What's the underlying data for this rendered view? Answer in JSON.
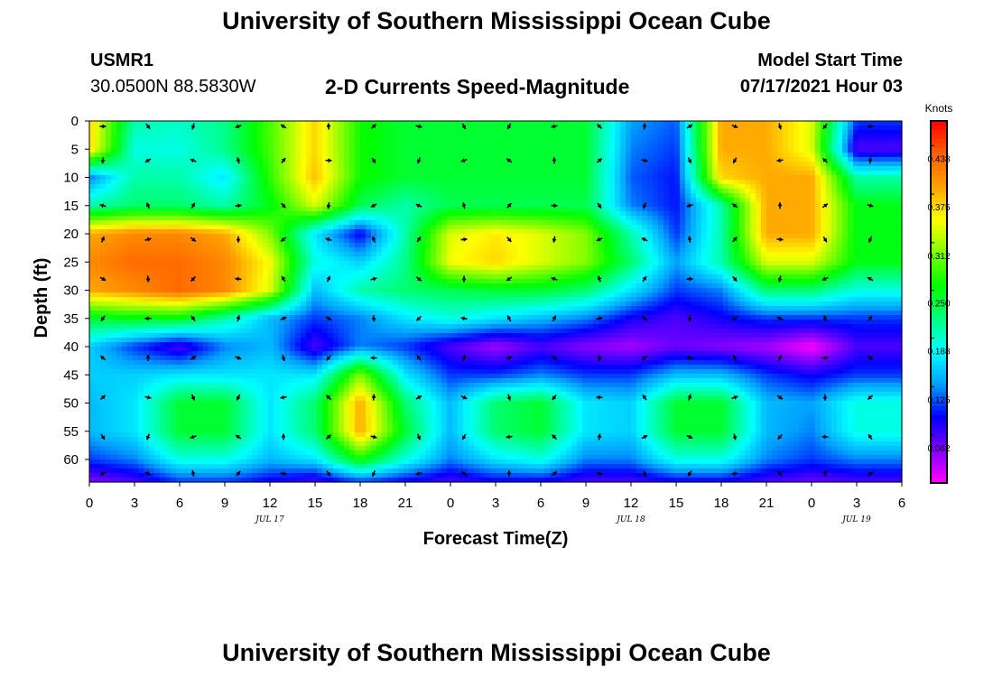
{
  "header": {
    "title": "University of Southern Mississippi Ocean Cube",
    "station_id": "USMR1",
    "station_coords": "30.0500N  88.5830W",
    "plot_title": "2-D Currents Speed-Magnitude",
    "model_start_label": "Model Start Time",
    "model_start_value": "07/17/2021 Hour 03"
  },
  "footer": {
    "title": "University of Southern Mississippi Ocean Cube"
  },
  "chart_data": {
    "type": "heatmap",
    "title": "2-D Currents Speed-Magnitude",
    "xlabel": "Forecast Time(Z)",
    "ylabel": "Depth (ft)",
    "x_tick_labels": [
      "0",
      "3",
      "6",
      "9",
      "12",
      "15",
      "18",
      "21",
      "0",
      "3",
      "6",
      "9",
      "12",
      "15",
      "18",
      "21",
      "0",
      "3",
      "6"
    ],
    "x_date_labels": [
      {
        "label": "JUL 17",
        "tick_index": 4
      },
      {
        "label": "JUL 18",
        "tick_index": 12
      },
      {
        "label": "JUL 19",
        "tick_index": 17
      }
    ],
    "y_tick_labels": [
      "0",
      "5",
      "10",
      "15",
      "20",
      "25",
      "30",
      "35",
      "40",
      "45",
      "50",
      "55",
      "60"
    ],
    "ylim": [
      0,
      64
    ],
    "y_inverted": true,
    "colorbar": {
      "unit": "Knots",
      "tick_labels": [
        "0.438",
        "0.375",
        "0.312",
        "0.250",
        "0.188",
        "0.125",
        "0.062"
      ],
      "tick_values": [
        0.438,
        0.375,
        0.312,
        0.25,
        0.188,
        0.125,
        0.062
      ],
      "range": [
        0,
        0.47
      ],
      "colors": [
        "#ff00ff",
        "#8000ff",
        "#0000ff",
        "#00a0ff",
        "#00ffff",
        "#00ff80",
        "#00ff00",
        "#80ff00",
        "#ffff00",
        "#ffa000",
        "#ff6000",
        "#ff0000"
      ]
    },
    "speed_grid": {
      "time_hours": [
        0,
        3,
        6,
        9,
        12,
        15,
        18,
        21,
        24,
        27,
        30,
        33,
        36,
        39,
        42,
        45,
        48,
        51
      ],
      "depths_ft": [
        0,
        5,
        10,
        15,
        20,
        25,
        30,
        35,
        40,
        45,
        50,
        55,
        60,
        64
      ],
      "values": [
        [
          0.36,
          0.2,
          0.19,
          0.21,
          0.28,
          0.36,
          0.26,
          0.24,
          0.24,
          0.24,
          0.24,
          0.24,
          0.13,
          0.11,
          0.38,
          0.38,
          0.33,
          0.1
        ],
        [
          0.36,
          0.18,
          0.18,
          0.21,
          0.28,
          0.36,
          0.26,
          0.24,
          0.24,
          0.24,
          0.24,
          0.24,
          0.12,
          0.1,
          0.38,
          0.38,
          0.33,
          0.06
        ],
        [
          0.12,
          0.2,
          0.2,
          0.16,
          0.27,
          0.37,
          0.26,
          0.24,
          0.24,
          0.24,
          0.24,
          0.24,
          0.11,
          0.09,
          0.36,
          0.38,
          0.38,
          0.2
        ],
        [
          0.2,
          0.22,
          0.22,
          0.2,
          0.25,
          0.33,
          0.23,
          0.2,
          0.23,
          0.23,
          0.23,
          0.23,
          0.12,
          0.09,
          0.2,
          0.38,
          0.38,
          0.25
        ],
        [
          0.38,
          0.4,
          0.4,
          0.38,
          0.3,
          0.16,
          0.08,
          0.2,
          0.33,
          0.35,
          0.33,
          0.3,
          0.2,
          0.1,
          0.2,
          0.38,
          0.38,
          0.25
        ],
        [
          0.4,
          0.42,
          0.42,
          0.4,
          0.34,
          0.18,
          0.15,
          0.21,
          0.34,
          0.36,
          0.33,
          0.3,
          0.22,
          0.13,
          0.2,
          0.33,
          0.33,
          0.25
        ],
        [
          0.38,
          0.4,
          0.42,
          0.4,
          0.33,
          0.14,
          0.2,
          0.22,
          0.23,
          0.24,
          0.24,
          0.22,
          0.16,
          0.1,
          0.12,
          0.22,
          0.22,
          0.18
        ],
        [
          0.24,
          0.25,
          0.25,
          0.2,
          0.14,
          0.1,
          0.12,
          0.16,
          0.18,
          0.16,
          0.14,
          0.12,
          0.08,
          0.06,
          0.08,
          0.1,
          0.1,
          0.1
        ],
        [
          0.15,
          0.1,
          0.06,
          0.12,
          0.14,
          0.06,
          0.12,
          0.1,
          0.06,
          0.03,
          0.06,
          0.04,
          0.03,
          0.05,
          0.04,
          0.03,
          0.0,
          0.06
        ],
        [
          0.15,
          0.15,
          0.16,
          0.16,
          0.16,
          0.16,
          0.3,
          0.16,
          0.1,
          0.1,
          0.12,
          0.1,
          0.1,
          0.14,
          0.14,
          0.1,
          0.08,
          0.1
        ],
        [
          0.14,
          0.16,
          0.24,
          0.24,
          0.16,
          0.22,
          0.38,
          0.22,
          0.14,
          0.22,
          0.24,
          0.16,
          0.15,
          0.24,
          0.24,
          0.14,
          0.13,
          0.18
        ],
        [
          0.14,
          0.16,
          0.24,
          0.24,
          0.16,
          0.22,
          0.38,
          0.24,
          0.14,
          0.22,
          0.24,
          0.16,
          0.15,
          0.24,
          0.24,
          0.14,
          0.12,
          0.18
        ],
        [
          0.1,
          0.12,
          0.18,
          0.18,
          0.14,
          0.16,
          0.26,
          0.18,
          0.12,
          0.16,
          0.18,
          0.12,
          0.12,
          0.18,
          0.18,
          0.12,
          0.1,
          0.12
        ],
        [
          0.04,
          0.06,
          0.1,
          0.1,
          0.08,
          0.06,
          0.1,
          0.08,
          0.06,
          0.08,
          0.08,
          0.06,
          0.06,
          0.08,
          0.08,
          0.06,
          0.05,
          0.06
        ]
      ]
    }
  }
}
